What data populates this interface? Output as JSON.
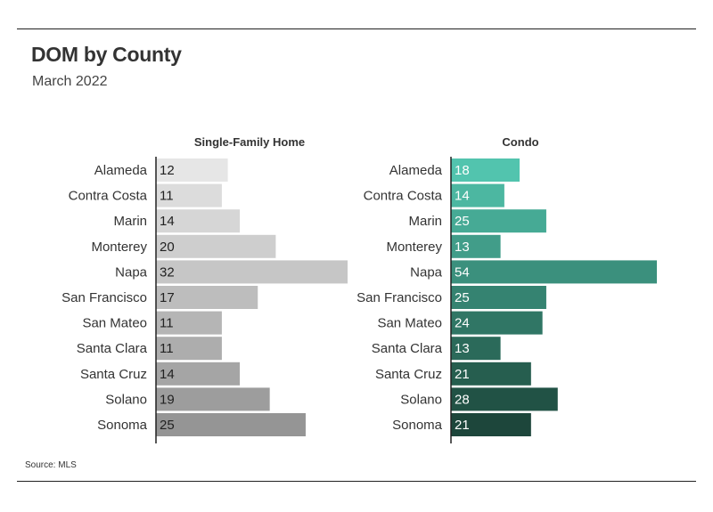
{
  "header": {
    "title": "DOM by County",
    "subtitle": "March 2022"
  },
  "footer": {
    "source": "Source: MLS"
  },
  "chart_data": [
    {
      "type": "bar",
      "orientation": "horizontal",
      "title": "Single-Family Home",
      "categories": [
        "Alameda",
        "Contra Costa",
        "Marin",
        "Monterey",
        "Napa",
        "San Francisco",
        "San Mateo",
        "Santa Clara",
        "Santa Cruz",
        "Solano",
        "Sonoma"
      ],
      "values": [
        12,
        11,
        14,
        20,
        32,
        17,
        11,
        11,
        14,
        19,
        25
      ],
      "colors": [
        "#e6e6e6",
        "#dcdcdc",
        "#d6d6d6",
        "#cecece",
        "#c6c6c6",
        "#bdbdbd",
        "#b5b5b5",
        "#adadad",
        "#a5a5a5",
        "#9d9d9d",
        "#959595"
      ],
      "label_color": "#222222",
      "xlim": [
        0,
        32
      ],
      "grid": false
    },
    {
      "type": "bar",
      "orientation": "horizontal",
      "title": "Condo",
      "categories": [
        "Alameda",
        "Contra Costa",
        "Marin",
        "Monterey",
        "Napa",
        "San Francisco",
        "San Mateo",
        "Santa Clara",
        "Santa Cruz",
        "Solano",
        "Sonoma"
      ],
      "values": [
        18,
        14,
        25,
        13,
        54,
        25,
        24,
        13,
        21,
        28,
        21
      ],
      "colors": [
        "#52c4ae",
        "#4cb7a1",
        "#46aa95",
        "#419d89",
        "#3b907d",
        "#358371",
        "#307665",
        "#2b6a5a",
        "#265e4f",
        "#215245",
        "#1d463b"
      ],
      "label_color": "#ffffff",
      "xlim": [
        0,
        54
      ],
      "grid": false
    }
  ]
}
